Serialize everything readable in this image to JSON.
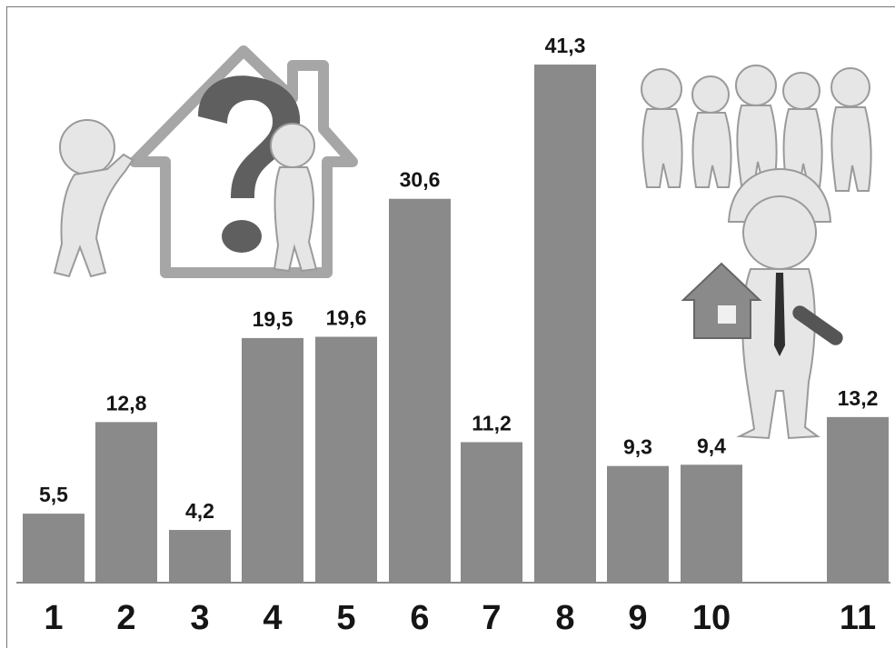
{
  "chart_data": {
    "type": "bar",
    "categories": [
      "1",
      "2",
      "3",
      "4",
      "5",
      "6",
      "7",
      "8",
      "9",
      "10",
      "11"
    ],
    "values": [
      5.5,
      12.8,
      4.2,
      19.5,
      19.6,
      30.6,
      11.2,
      41.3,
      9.3,
      9.4,
      13.2
    ],
    "value_labels": [
      "5,5",
      "12,8",
      "4,2",
      "19,5",
      "19,6",
      "30,6",
      "11,2",
      "41,3",
      "9,3",
      "9,4",
      "13,2"
    ],
    "title": "",
    "xlabel": "",
    "ylabel": "",
    "ylim": [
      0,
      45
    ],
    "grid": false,
    "colors": {
      "bar": "#8a8a8a",
      "text": "#151515"
    }
  },
  "illustrations": {
    "left": "house-question-figures-icon",
    "right": "builder-with-house-and-team-icon"
  }
}
